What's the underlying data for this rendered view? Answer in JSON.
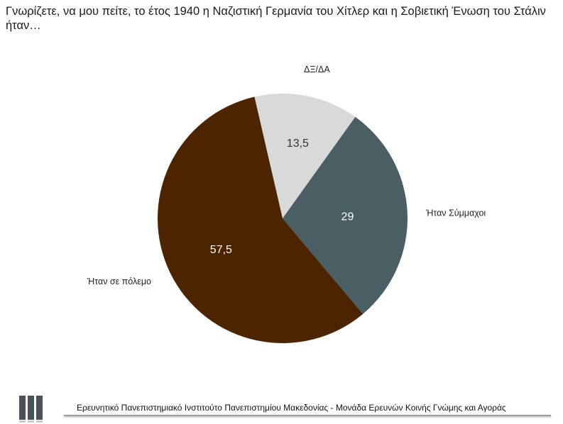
{
  "question": "Γνωρίζετε, να μου πείτε, το έτος 1940 η Ναζιστική Γερμανία του Χίτλερ και η Σοβιετική Ένωση του Στάλιν ήταν…",
  "footer": {
    "institute": "Ερευνητικό Πανεπιστημιακό Ινστιτούτο Πανεπιστημίου Μακεδονίας - Μονάδα Ερευνών Κοινής Γνώμης και Αγοράς"
  },
  "chart_data": {
    "type": "pie",
    "categories": [
      "ΔΞ/ΔΑ",
      "Ήταν Σύμμαχοι",
      "Ήταν σε πόλεμο"
    ],
    "values": [
      13.5,
      29,
      57.5
    ],
    "value_labels": [
      "13,5",
      "29",
      "57,5"
    ],
    "colors": [
      "#d9d9d9",
      "#4a5f63",
      "#4d2400"
    ],
    "label_colors": [
      "#333333",
      "#ffffff",
      "#ffffff"
    ],
    "start_angle_deg": -13,
    "direction": "clockwise",
    "legend": "none"
  }
}
